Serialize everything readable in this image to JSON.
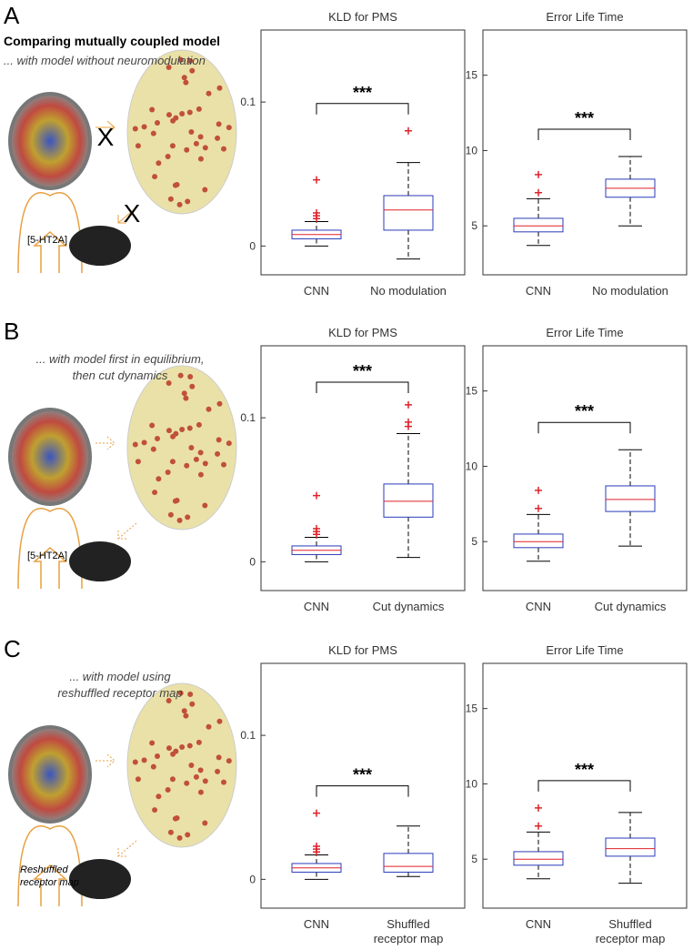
{
  "panels": [
    {
      "letter": "A",
      "heading": "Comparing mutually coupled model",
      "subheading": [
        "... with model without neuromodulation"
      ],
      "receptor_label": [
        "[5-HT2A]"
      ]
    },
    {
      "letter": "B",
      "subheading": [
        "... with model first in equilibrium,",
        "then cut dynamics"
      ],
      "receptor_label": [
        "[5-HT2A]"
      ]
    },
    {
      "letter": "C",
      "subheading": [
        "... with model using",
        "reshuffled receptor map"
      ],
      "receptor_label": [
        "Reshuffled",
        "receptor map"
      ]
    }
  ],
  "chart_data": [
    {
      "type": "box",
      "title": "KLD for PMS",
      "categories": [
        "CNN",
        "No modulation"
      ],
      "ylim": [
        -0.02,
        0.15
      ],
      "yticks": [
        0,
        0.1
      ],
      "significance": "***",
      "boxes": [
        {
          "whislo": 0,
          "q1": 0.005,
          "med": 0.008,
          "q3": 0.011,
          "whishi": 0.017,
          "fliers": [
            0.019,
            0.021,
            0.023,
            0.046
          ]
        },
        {
          "whislo": -0.009,
          "q1": 0.011,
          "med": 0.025,
          "q3": 0.035,
          "whishi": 0.058,
          "fliers": [
            0.08
          ]
        }
      ]
    },
    {
      "type": "box",
      "title": "Error Life Time",
      "categories": [
        "CNN",
        "No modulation"
      ],
      "ylim": [
        1.75,
        18
      ],
      "yticks": [
        5,
        10,
        15
      ],
      "significance": "***",
      "boxes": [
        {
          "whislo": 3.7,
          "q1": 4.6,
          "med": 5,
          "q3": 5.5,
          "whishi": 6.8,
          "fliers": [
            7.2,
            8.4
          ]
        },
        {
          "whislo": 5,
          "q1": 6.9,
          "med": 7.5,
          "q3": 8.1,
          "whishi": 9.6,
          "fliers": []
        }
      ]
    },
    {
      "type": "box",
      "title": "KLD for PMS",
      "categories": [
        "CNN",
        "Cut dynamics"
      ],
      "ylim": [
        -0.02,
        0.15
      ],
      "yticks": [
        0,
        0.1
      ],
      "significance": "***",
      "boxes": [
        {
          "whislo": 0,
          "q1": 0.005,
          "med": 0.008,
          "q3": 0.011,
          "whishi": 0.017,
          "fliers": [
            0.019,
            0.021,
            0.023,
            0.046
          ]
        },
        {
          "whislo": 0.003,
          "q1": 0.031,
          "med": 0.042,
          "q3": 0.054,
          "whishi": 0.089,
          "fliers": [
            0.094,
            0.097,
            0.109
          ]
        }
      ]
    },
    {
      "type": "box",
      "title": "Error Life Time",
      "categories": [
        "CNN",
        "Cut dynamics"
      ],
      "ylim": [
        1.75,
        18
      ],
      "yticks": [
        5,
        10,
        15
      ],
      "significance": "***",
      "boxes": [
        {
          "whislo": 3.7,
          "q1": 4.6,
          "med": 5,
          "q3": 5.5,
          "whishi": 6.8,
          "fliers": [
            7.2,
            8.4
          ]
        },
        {
          "whislo": 4.7,
          "q1": 7,
          "med": 7.8,
          "q3": 8.7,
          "whishi": 11.1,
          "fliers": []
        }
      ]
    },
    {
      "type": "box",
      "title": "KLD for PMS",
      "categories": [
        "CNN",
        [
          "Shuffled",
          "receptor map"
        ]
      ],
      "ylim": [
        -0.02,
        0.15
      ],
      "yticks": [
        0,
        0.1
      ],
      "significance": "***",
      "boxes": [
        {
          "whislo": 0,
          "q1": 0.005,
          "med": 0.008,
          "q3": 0.011,
          "whishi": 0.017,
          "fliers": [
            0.019,
            0.021,
            0.023,
            0.046
          ]
        },
        {
          "whislo": 0.002,
          "q1": 0.005,
          "med": 0.009,
          "q3": 0.018,
          "whishi": 0.037,
          "fliers": []
        }
      ]
    },
    {
      "type": "box",
      "title": "Error Life Time",
      "categories": [
        "CNN",
        [
          "Shuffled",
          "receptor map"
        ]
      ],
      "ylim": [
        1.75,
        18
      ],
      "yticks": [
        5,
        10,
        15
      ],
      "significance": "***",
      "boxes": [
        {
          "whislo": 3.7,
          "q1": 4.6,
          "med": 5,
          "q3": 5.5,
          "whishi": 6.8,
          "fliers": [
            7.2,
            8.4
          ]
        },
        {
          "whislo": 3.4,
          "q1": 5.2,
          "med": 5.7,
          "q3": 6.4,
          "whishi": 8.1,
          "fliers": []
        }
      ]
    }
  ]
}
